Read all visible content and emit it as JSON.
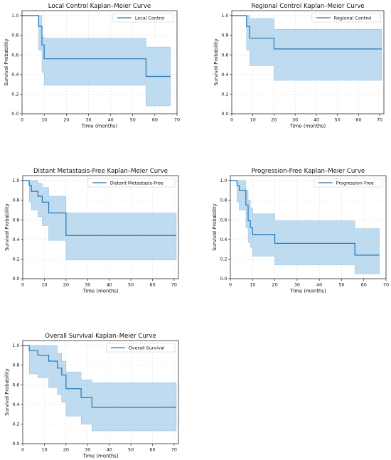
{
  "colors": {
    "line": "#1f77b4",
    "band": "#a9cfe9",
    "band_edge": "#7fb3d8"
  },
  "chart_data": [
    {
      "type": "line",
      "title": "Local Control Kaplan–Meier Curve",
      "xlabel": "Time (months)",
      "ylabel": "Survival Probability",
      "xlim": [
        0,
        70
      ],
      "ylim": [
        0,
        1.05
      ],
      "xticks": [
        0,
        10,
        20,
        30,
        40,
        50,
        60,
        70
      ],
      "yticks": [
        0.0,
        0.2,
        0.4,
        0.6,
        0.8,
        1.0
      ],
      "grid": true,
      "legend_position": "top-right",
      "series": [
        {
          "name": "Local Control",
          "x": [
            0,
            7.5,
            9,
            10,
            56,
            67
          ],
          "y": [
            1.0,
            0.89,
            0.7,
            0.56,
            0.38,
            0.38
          ],
          "lower": [
            1.0,
            0.65,
            0.42,
            0.29,
            0.08,
            0.08
          ],
          "upper": [
            1.0,
            1.0,
            0.78,
            0.77,
            0.68,
            0.68
          ]
        }
      ]
    },
    {
      "type": "line",
      "title": "Regional Control Kaplan–Meier Curve",
      "xlabel": "Time (months)",
      "ylabel": "Survival Probability",
      "xlim": [
        0,
        72
      ],
      "ylim": [
        0,
        1.05
      ],
      "xticks": [
        0,
        10,
        20,
        30,
        40,
        50,
        60,
        70
      ],
      "yticks": [
        0.0,
        0.2,
        0.4,
        0.6,
        0.8,
        1.0
      ],
      "grid": true,
      "legend_position": "top-right",
      "series": [
        {
          "name": "Regional Control",
          "x": [
            0,
            7,
            8.5,
            20,
            71
          ],
          "y": [
            1.0,
            0.89,
            0.77,
            0.66,
            0.66
          ],
          "lower": [
            1.0,
            0.65,
            0.49,
            0.34,
            0.34
          ],
          "upper": [
            1.0,
            1.0,
            0.97,
            0.86,
            0.86
          ]
        }
      ]
    },
    {
      "type": "line",
      "title": "Distant Metastasis-Free Kaplan–Meier Curve",
      "xlabel": "Time (months)",
      "ylabel": "Survival Probability",
      "xlim": [
        0,
        72
      ],
      "ylim": [
        0,
        1.05
      ],
      "xticks": [
        0,
        10,
        20,
        30,
        40,
        50,
        60,
        70
      ],
      "yticks": [
        0.0,
        0.2,
        0.4,
        0.6,
        0.8,
        1.0
      ],
      "grid": true,
      "legend_position": "top-right",
      "series": [
        {
          "name": "Distant Metastasis-Free",
          "x": [
            0,
            3,
            4,
            7,
            9,
            12,
            20,
            71
          ],
          "y": [
            1.0,
            0.95,
            0.89,
            0.84,
            0.78,
            0.67,
            0.44,
            0.44
          ],
          "lower": [
            1.0,
            0.78,
            0.7,
            0.63,
            0.54,
            0.39,
            0.19,
            0.19
          ],
          "upper": [
            1.0,
            1.0,
            1.0,
            0.97,
            0.93,
            0.84,
            0.67,
            0.67
          ]
        }
      ]
    },
    {
      "type": "line",
      "title": "Progression-Free Kaplan–Meier Curve",
      "xlabel": "Time (months)",
      "ylabel": "Survival Probability",
      "xlim": [
        0,
        70
      ],
      "ylim": [
        0,
        1.05
      ],
      "xticks": [
        0,
        10,
        20,
        30,
        40,
        50,
        60,
        70
      ],
      "yticks": [
        0.0,
        0.2,
        0.4,
        0.6,
        0.8,
        1.0
      ],
      "grid": true,
      "legend_position": "top-right",
      "series": [
        {
          "name": "Progression-Free",
          "x": [
            0,
            3,
            4,
            7,
            8,
            9,
            10,
            20,
            56,
            67
          ],
          "y": [
            1.0,
            0.95,
            0.9,
            0.75,
            0.59,
            0.52,
            0.45,
            0.36,
            0.24,
            0.24
          ],
          "lower": [
            1.0,
            0.78,
            0.7,
            0.52,
            0.37,
            0.32,
            0.23,
            0.14,
            0.05,
            0.05
          ],
          "upper": [
            1.0,
            1.0,
            1.0,
            0.9,
            0.8,
            0.72,
            0.66,
            0.59,
            0.51,
            0.51
          ]
        }
      ]
    },
    {
      "type": "line",
      "title": "Overall Survival Kaplan–Meier Curve",
      "xlabel": "Time (months)",
      "ylabel": "Survival Probability",
      "xlim": [
        0,
        72
      ],
      "ylim": [
        0,
        1.05
      ],
      "xticks": [
        0,
        10,
        20,
        30,
        40,
        50,
        60,
        70
      ],
      "yticks": [
        0.0,
        0.2,
        0.4,
        0.6,
        0.8,
        1.0
      ],
      "grid": true,
      "legend_position": "top-right",
      "series": [
        {
          "name": "Overall Survival",
          "x": [
            0,
            3,
            7,
            12,
            16,
            18,
            20,
            27,
            32,
            71
          ],
          "y": [
            1.0,
            0.95,
            0.9,
            0.84,
            0.77,
            0.7,
            0.56,
            0.47,
            0.37,
            0.37
          ],
          "lower": [
            1.0,
            0.71,
            0.67,
            0.57,
            0.5,
            0.42,
            0.28,
            0.2,
            0.13,
            0.13
          ],
          "upper": [
            1.0,
            1.0,
            1.0,
            1.0,
            0.92,
            0.84,
            0.73,
            0.65,
            0.62,
            0.62
          ]
        }
      ]
    }
  ]
}
